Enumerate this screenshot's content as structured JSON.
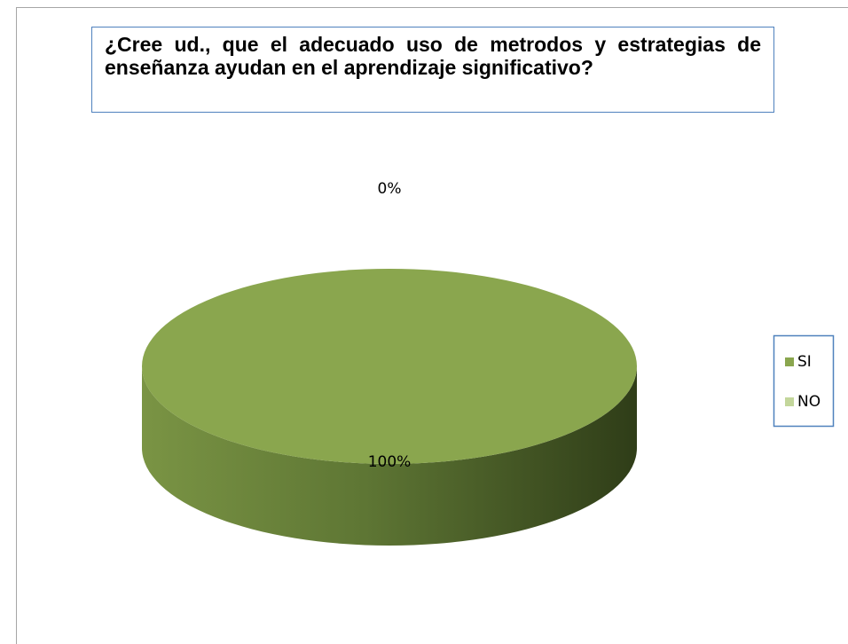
{
  "chart_data": {
    "type": "pie",
    "title": "¿Cree ud., que el adecuado uso de metrodos y estrategias de enseñanza ayudan en el aprendizaje significativo?",
    "categories": [
      "SI",
      "NO"
    ],
    "values": [
      100,
      0
    ],
    "value_labels": [
      "100%",
      "0%"
    ],
    "colors": [
      "#8aa64e",
      "#c3d69b"
    ],
    "legend": "right"
  }
}
